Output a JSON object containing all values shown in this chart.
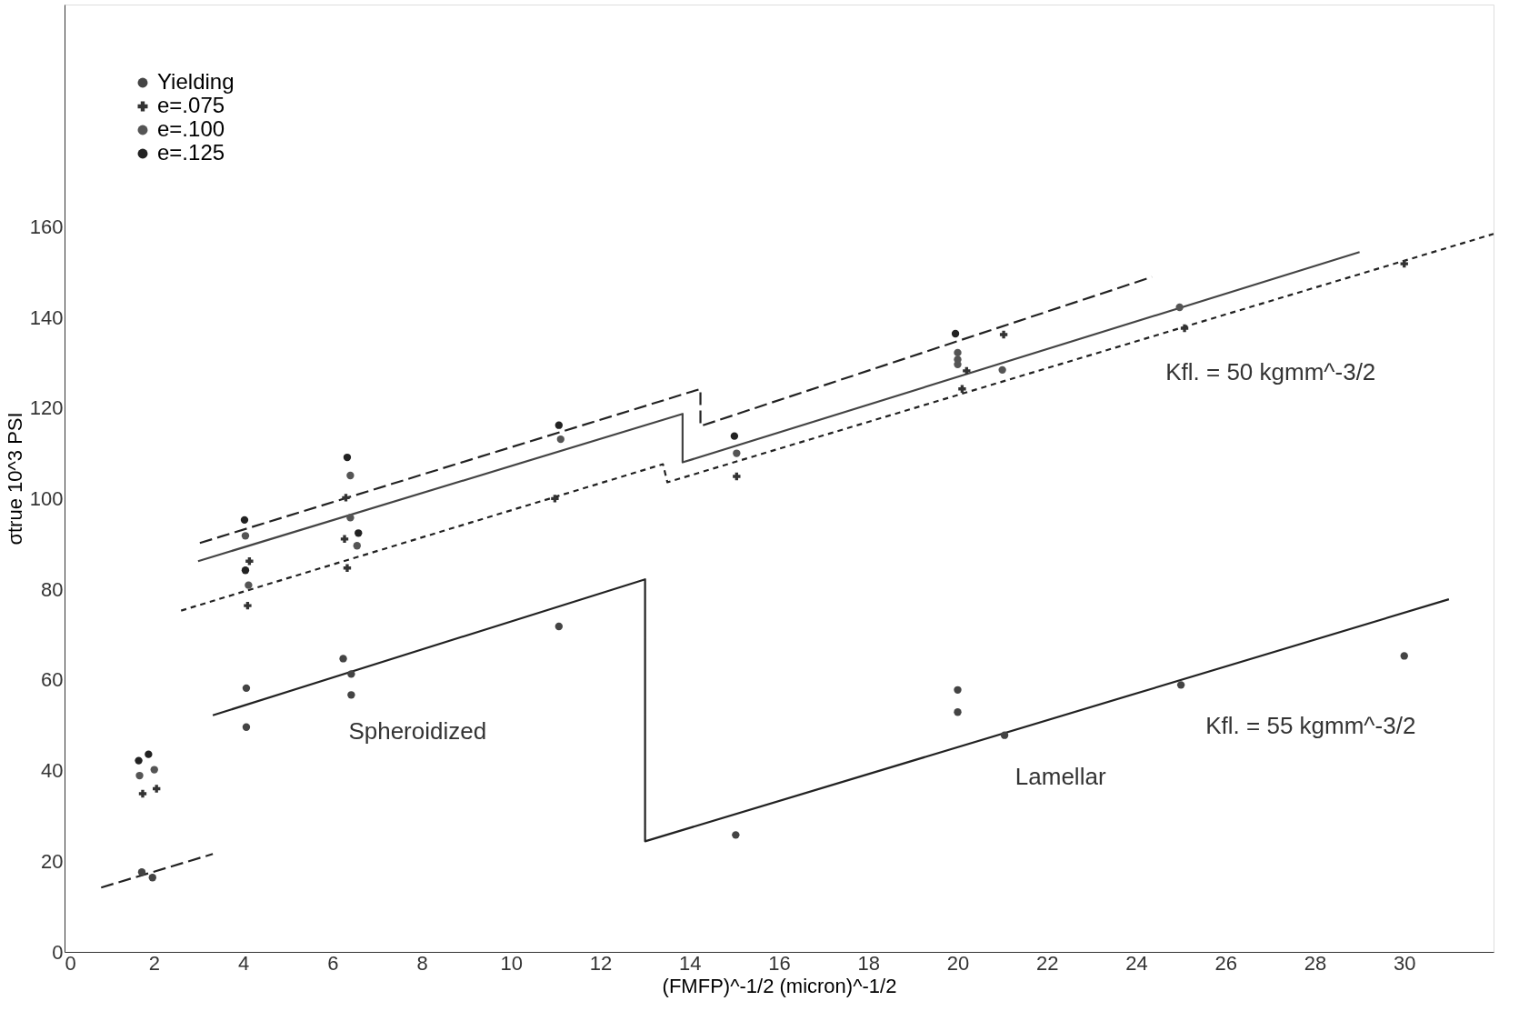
{
  "chart_data": {
    "type": "scatter",
    "xlabel": "(FMFP)^-1/2                                        (micron)^-1/2",
    "ylabel": "σtrue   10^3 PSI",
    "xlim": [
      0,
      32
    ],
    "ylim": [
      0,
      209
    ],
    "xticks": [
      0,
      2,
      4,
      6,
      8,
      10,
      12,
      14,
      16,
      18,
      20,
      22,
      24,
      26,
      28,
      30
    ],
    "yticks": [
      0,
      20,
      40,
      60,
      80,
      100,
      120,
      140,
      160
    ],
    "grid": false,
    "legend": "top left",
    "series": [
      {
        "name": "Yielding",
        "marker": "circle",
        "color": "#444444",
        "x": [
          1.73,
          1.97,
          4.07,
          4.07,
          6.24,
          6.42,
          6.42,
          11.07,
          15.03,
          20.0,
          20.0,
          21.05,
          25.0,
          30.0
        ],
        "values": [
          17.6,
          16.4,
          58.2,
          49.6,
          64.7,
          61.3,
          56.7,
          71.8,
          25.8,
          57.8,
          52.9,
          47.8,
          58.9,
          65.3
        ]
      },
      {
        "name": "e=.075",
        "marker": "cross",
        "color": "#333333",
        "x": [
          1.75,
          2.06,
          4.1,
          4.14,
          6.33,
          6.27,
          6.3,
          10.98,
          15.05,
          20.1,
          20.2,
          21.03,
          25.08,
          30.0
        ],
        "values": [
          34.9,
          36.0,
          76.4,
          86.2,
          84.7,
          91.1,
          100.2,
          100.0,
          104.9,
          124.2,
          128.2,
          136.2,
          137.6,
          151.8
        ]
      },
      {
        "name": "e=.100",
        "marker": "circle",
        "color": "#555555",
        "x": [
          1.68,
          2.01,
          4.05,
          4.12,
          6.4,
          6.55,
          6.4,
          11.11,
          15.05,
          20.0,
          20.0,
          20.0,
          21.0,
          24.97
        ],
        "values": [
          38.9,
          40.2,
          91.8,
          80.9,
          95.8,
          89.6,
          105.1,
          113.1,
          110.0,
          132.2,
          130.7,
          129.6,
          128.4,
          142.2
        ]
      },
      {
        "name": "e=.125",
        "marker": "circle",
        "color": "#222222",
        "x": [
          1.66,
          1.88,
          4.03,
          4.05,
          6.33,
          6.58,
          11.07,
          15.0,
          19.95
        ],
        "values": [
          42.2,
          43.6,
          95.3,
          84.2,
          109.1,
          92.4,
          116.2,
          113.8,
          136.4
        ]
      },
      {
        "type": "line",
        "line_style": "solid",
        "color": "#222222",
        "x": [
          3.32,
          13.0,
          13.0,
          31.0
        ],
        "values": [
          52.2,
          82.2,
          24.4,
          77.8
        ]
      },
      {
        "type": "line",
        "line_style": "dashed",
        "color": "#222222",
        "x": [
          0.82,
          3.32
        ],
        "values": [
          14.2,
          21.6
        ]
      },
      {
        "type": "line",
        "line_style": "dotted",
        "color": "#222222",
        "x": [
          2.61,
          13.4,
          13.5,
          32.0
        ],
        "values": [
          75.3,
          107.6,
          103.6,
          158.4
        ]
      },
      {
        "type": "line",
        "line_style": "solid",
        "color": "#444444",
        "x": [
          2.99,
          13.84,
          13.84,
          29.0
        ],
        "values": [
          86.2,
          118.7,
          108.0,
          154.4
        ]
      },
      {
        "type": "line",
        "line_style": "dashed",
        "color": "#222222",
        "x": [
          3.03,
          14.24,
          14.24,
          24.35
        ],
        "values": [
          90.2,
          124.2,
          116.0,
          148.9
        ]
      }
    ],
    "annotations": [
      "Spheroidized",
      "Lamellar",
      "Kfl. = 50 kgmm^-3/2",
      "Kfl. = 55 kgmm^-3/2"
    ]
  }
}
